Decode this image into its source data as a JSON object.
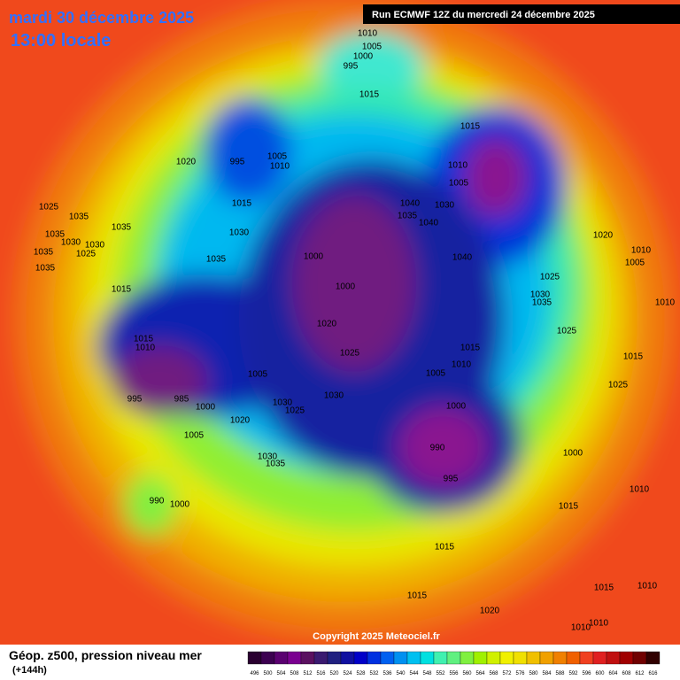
{
  "header": {
    "date": "mardi 30 décembre 2025",
    "time": "13:00 locale",
    "run": "Run ECMWF 12Z du mercredi 24 décembre 2025"
  },
  "map": {
    "isobar_labels": [
      "1010",
      "1005",
      "1000",
      "995",
      "1015",
      "1015",
      "1020",
      "995",
      "1005",
      "1010",
      "1010",
      "1005",
      "1015",
      "1040",
      "1030",
      "1035",
      "1040",
      "1030",
      "1025",
      "1035",
      "1035",
      "1035",
      "1030",
      "1030",
      "1025",
      "1035",
      "1035",
      "1020",
      "1010",
      "1005",
      "1000",
      "1040",
      "1035",
      "1025",
      "1015",
      "1000",
      "1030",
      "1035",
      "1010",
      "1020",
      "1025",
      "1015",
      "1010",
      "1025",
      "1015",
      "1015",
      "1010",
      "1005",
      "1005",
      "1025",
      "995",
      "985",
      "1000",
      "1030",
      "1030",
      "1025",
      "1000",
      "1020",
      "1005",
      "990",
      "1000",
      "1030",
      "1035",
      "995",
      "1010",
      "990",
      "1000",
      "1015",
      "1015",
      "1015",
      "1015",
      "1010",
      "1020",
      "1010",
      "1010"
    ]
  },
  "footer": {
    "copyright": "Copyright 2025 Meteociel.fr",
    "legend_title": "Géop. z500, pression niveau mer",
    "lead": "(+144h)",
    "scale": [
      496,
      500,
      504,
      508,
      512,
      516,
      520,
      524,
      528,
      532,
      536,
      540,
      544,
      548,
      552,
      556,
      560,
      564,
      568,
      572,
      576,
      580,
      584,
      588,
      592,
      596,
      600,
      604,
      608,
      612,
      616
    ]
  }
}
